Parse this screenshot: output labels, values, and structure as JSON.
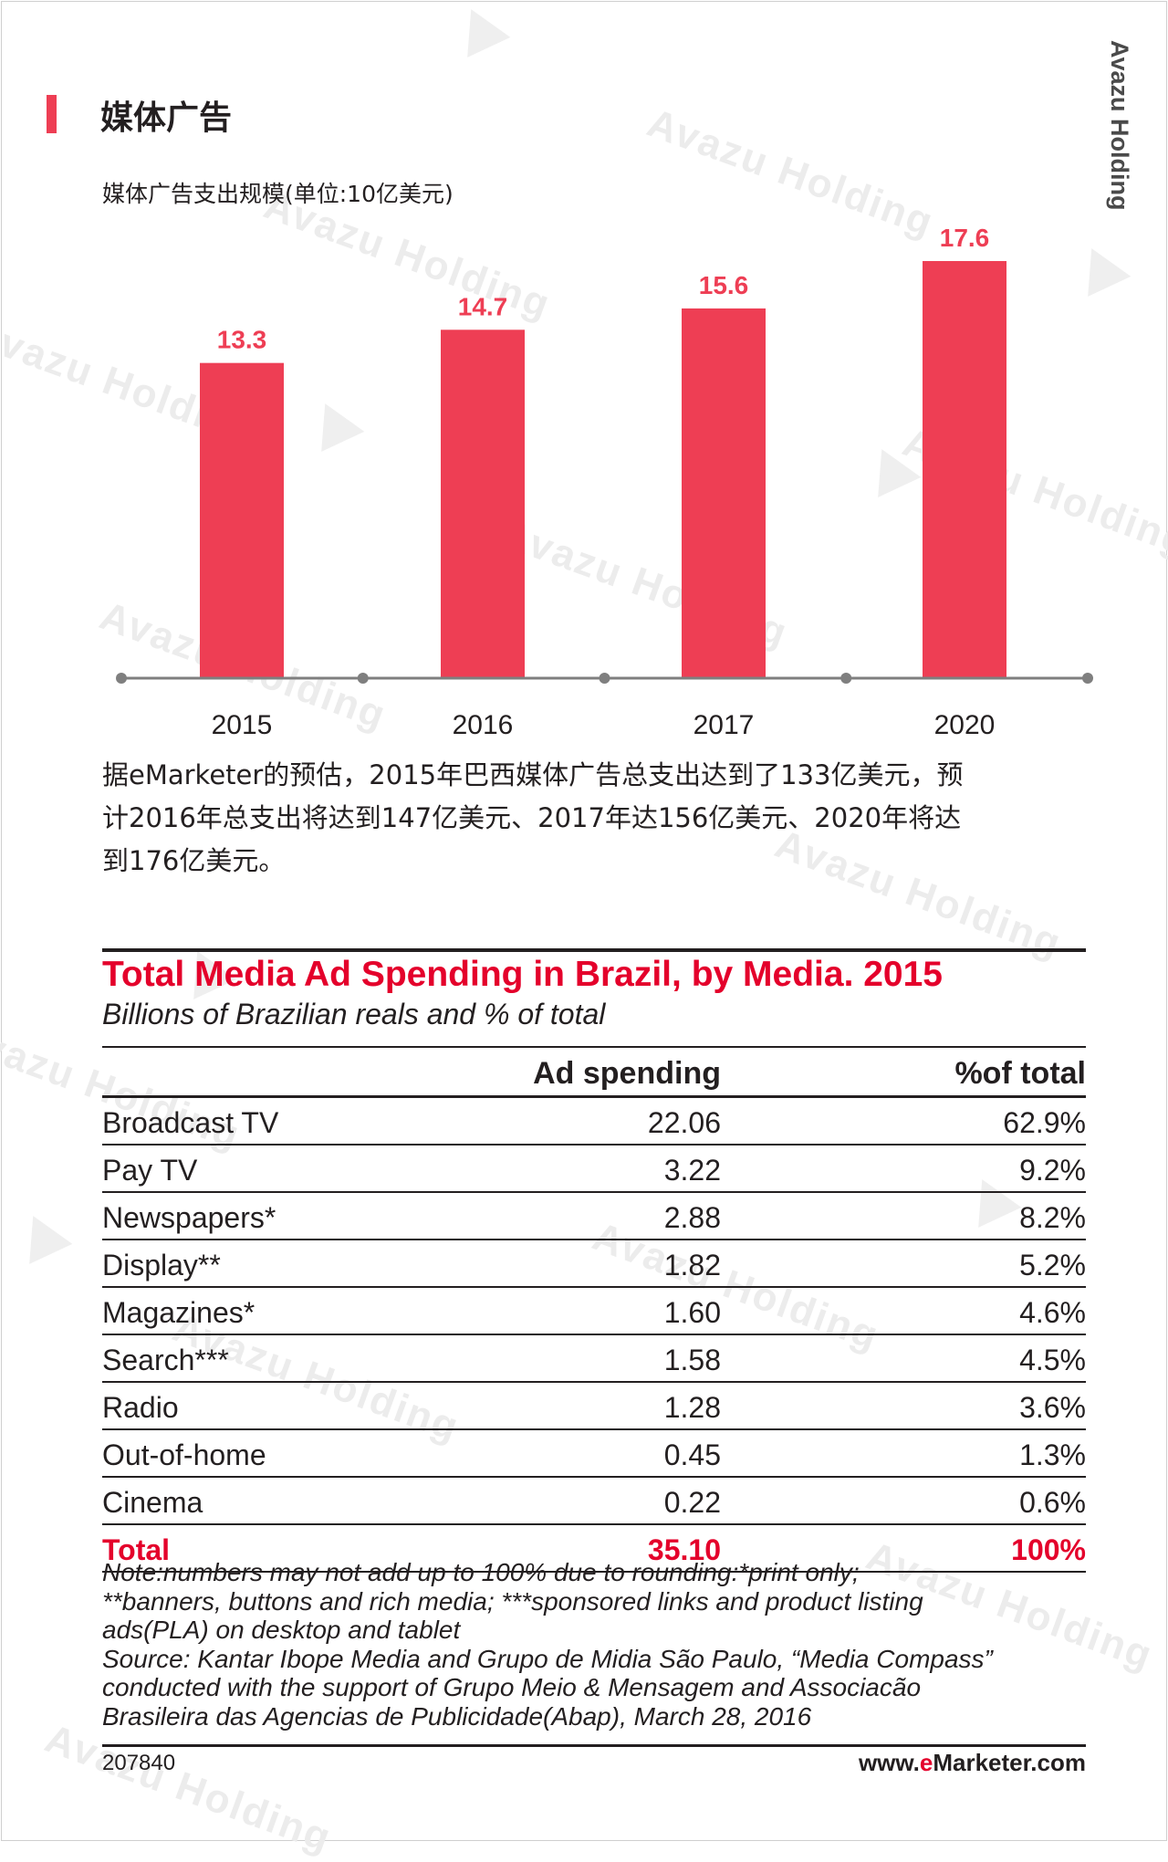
{
  "watermark": "Avazu Holding",
  "side_brand": "Avazu Holding",
  "section_title": "媒体广告",
  "chart_subtitle": "媒体广告支出规模(单位:10亿美元)",
  "chart_data": {
    "type": "bar",
    "categories": [
      "2015",
      "2016",
      "2017",
      "2020"
    ],
    "values": [
      13.3,
      14.7,
      15.6,
      17.6
    ],
    "value_labels": [
      "13.3",
      "14.7",
      "15.6",
      "17.6"
    ],
    "title": "媒体广告支出规模(单位:10亿美元)",
    "ylim": [
      0,
      17.6
    ],
    "grid": false,
    "bar_color": "#ee3e54"
  },
  "paragraph_lines": [
    "据eMarketer的预估，2015年巴西媒体广告总支出达到了133亿美元，预",
    "计2016年总支出将达到147亿美元、2017年达156亿美元、2020年将达",
    "到176亿美元。"
  ],
  "table": {
    "title": "Total Media Ad Spending in Brazil, by Media. 2015",
    "subtitle": "Billions of Brazilian reals and % of total",
    "headers": [
      "",
      "Ad spending",
      "%of total"
    ],
    "rows": [
      [
        "Broadcast TV",
        "22.06",
        "62.9%"
      ],
      [
        "Pay TV",
        "3.22",
        "9.2%"
      ],
      [
        "Newspapers*",
        "2.88",
        "8.2%"
      ],
      [
        "Display**",
        "1.82",
        "5.2%"
      ],
      [
        "Magazines*",
        "1.60",
        "4.6%"
      ],
      [
        "Search***",
        "1.58",
        "4.5%"
      ],
      [
        "Radio",
        "1.28",
        "3.6%"
      ],
      [
        "Out-of-home",
        "0.45",
        "1.3%"
      ],
      [
        "Cinema",
        "0.22",
        "0.6%"
      ]
    ],
    "total": [
      "Total",
      "35.10",
      "100%"
    ],
    "accent_color": "#e4002b"
  },
  "notes_lines": [
    "Note:numbers may not add up to 100% due to rounding:*print only;",
    "**banners, buttons and rich media; ***sponsored links and product listing",
    "ads(PLA) on desktop and tablet",
    "Source: Kantar Ibope Media and Grupo de Midia São Paulo, “Media Compass”",
    "conducted with the support of Grupo Meio & Mensagem and Associacão",
    "Brasileira das Agencias de Publicidade(Abap), March 28, 2016"
  ],
  "footer": {
    "chart_id": "207840",
    "site_prefix": "www.",
    "site_accent": "e",
    "site_suffix": "Marketer.com"
  }
}
